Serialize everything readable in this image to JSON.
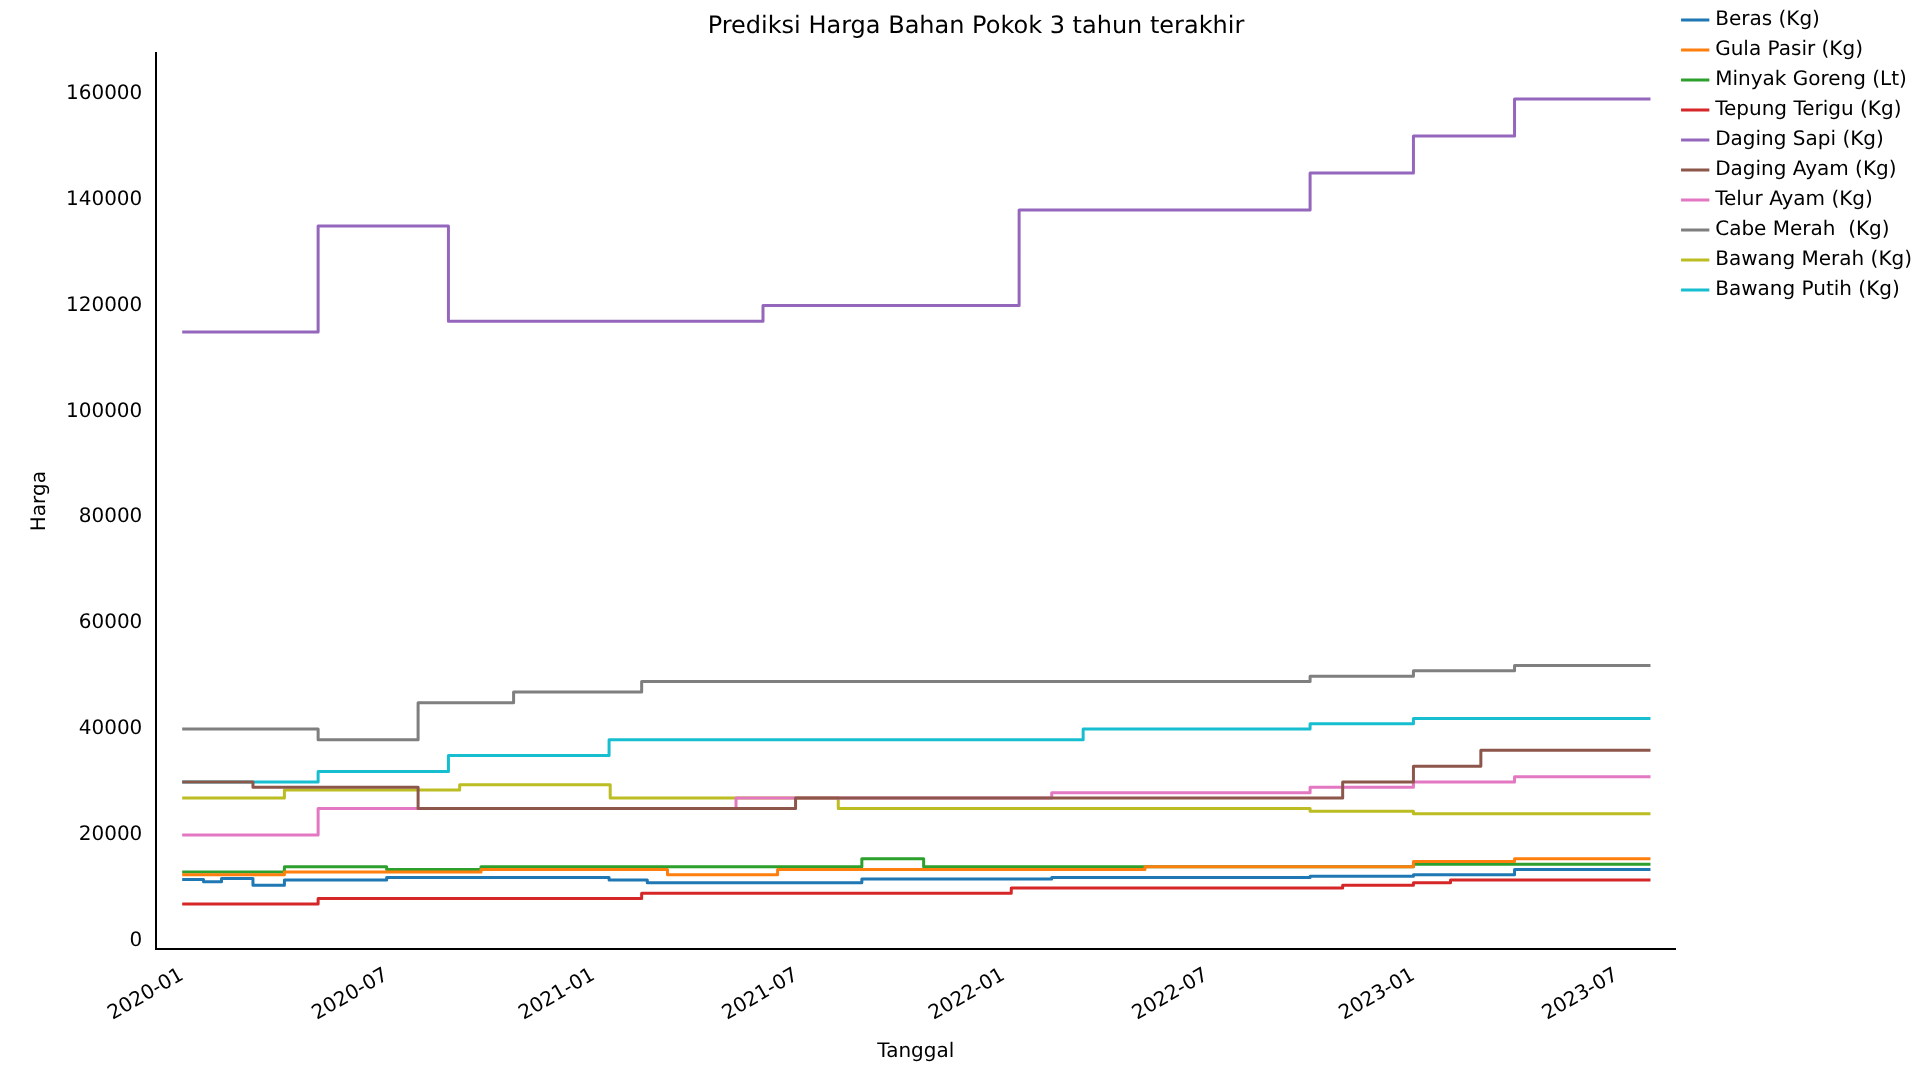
{
  "chart_data": {
    "type": "step",
    "title": "Prediksi Harga Bahan Pokok 3 tahun terakhir",
    "xlabel": "Tanggal",
    "ylabel": "Harga",
    "xlim": [
      "2019-12-09",
      "2023-08-22"
    ],
    "ylim": [
      -1600,
      167700
    ],
    "xticks": [
      "2020-01",
      "2020-07",
      "2021-01",
      "2021-07",
      "2022-01",
      "2022-07",
      "2023-01",
      "2023-07"
    ],
    "yticks": [
      0,
      20000,
      40000,
      60000,
      80000,
      100000,
      120000,
      140000,
      160000
    ],
    "grid": false,
    "legend": "top right",
    "line_style": "solid",
    "marker": "none",
    "series": [
      {
        "name": "Beras (Kg)",
        "color": "#1f77b4",
        "x": [
          "2020-01-01",
          "2020-01-20",
          "2020-02-05",
          "2020-03-04",
          "2020-04-01",
          "2020-07-01",
          "2021-01-15",
          "2021-02-18",
          "2021-08-28",
          "2022-02-13",
          "2022-10-01",
          "2023-01-01",
          "2023-04-01",
          "2023-07-31"
        ],
        "values": [
          11600,
          11200,
          11800,
          10500,
          11500,
          12000,
          11500,
          11000,
          11700,
          12000,
          12200,
          12500,
          13500,
          13500
        ]
      },
      {
        "name": "Gula Pasir (Kg)",
        "color": "#ff7f0e",
        "x": [
          "2020-01-01",
          "2020-04-01",
          "2020-09-23",
          "2021-03-08",
          "2021-06-14",
          "2022-05-07",
          "2023-01-01",
          "2023-04-01",
          "2023-07-31"
        ],
        "values": [
          12500,
          13000,
          13500,
          12500,
          13500,
          14000,
          15000,
          15500,
          15500
        ]
      },
      {
        "name": "Minyak Goreng (Lt)",
        "color": "#2ca02c",
        "x": [
          "2020-01-01",
          "2020-04-01",
          "2020-07-01",
          "2020-09-23",
          "2021-08-28",
          "2021-10-22",
          "2023-01-01",
          "2023-07-31"
        ],
        "values": [
          13000,
          14000,
          13500,
          14000,
          15500,
          14000,
          14500,
          14500
        ]
      },
      {
        "name": "Tepung Terigu (Kg)",
        "color": "#d62728",
        "x": [
          "2020-01-01",
          "2020-05-01",
          "2021-02-13",
          "2022-01-08",
          "2022-10-30",
          "2023-01-01",
          "2023-02-03",
          "2023-07-31"
        ],
        "values": [
          7000,
          8000,
          9000,
          10000,
          10500,
          11000,
          11500,
          11500
        ]
      },
      {
        "name": "Daging Sapi (Kg)",
        "color": "#9467bd",
        "x": [
          "2020-01-01",
          "2020-05-01",
          "2020-08-25",
          "2021-06-01",
          "2022-01-15",
          "2022-10-01",
          "2023-01-01",
          "2023-04-01",
          "2023-07-31"
        ],
        "values": [
          115000,
          135000,
          117000,
          120000,
          138000,
          145000,
          152000,
          159000,
          159000
        ]
      },
      {
        "name": "Daging Ayam (Kg)",
        "color": "#8c564b",
        "x": [
          "2020-01-01",
          "2020-03-04",
          "2020-07-29",
          "2021-06-30",
          "2022-10-30",
          "2023-01-01",
          "2023-03-02",
          "2023-07-31"
        ],
        "values": [
          30000,
          29000,
          25000,
          27000,
          30000,
          33000,
          36000,
          36000
        ]
      },
      {
        "name": "Telur Ayam (Kg)",
        "color": "#e377c2",
        "x": [
          "2020-01-01",
          "2020-05-01",
          "2021-05-08",
          "2022-02-13",
          "2022-10-01",
          "2023-01-01",
          "2023-04-01",
          "2023-07-31"
        ],
        "values": [
          20000,
          25000,
          27000,
          28000,
          29000,
          30000,
          31000,
          31000
        ]
      },
      {
        "name": "Cabe Merah  (Kg)",
        "color": "#7f7f7f",
        "x": [
          "2020-01-01",
          "2020-05-01",
          "2020-07-29",
          "2020-10-22",
          "2021-02-13",
          "2022-10-01",
          "2023-01-01",
          "2023-04-01",
          "2023-07-31"
        ],
        "values": [
          40000,
          38000,
          45000,
          47000,
          49000,
          50000,
          51000,
          52000,
          52000
        ]
      },
      {
        "name": "Bawang Merah (Kg)",
        "color": "#bcbd22",
        "x": [
          "2020-01-01",
          "2020-04-01",
          "2020-09-04",
          "2021-01-16",
          "2021-08-07",
          "2022-10-01",
          "2023-01-01",
          "2023-07-31"
        ],
        "values": [
          27000,
          28500,
          29500,
          27000,
          25000,
          24500,
          24000,
          24000
        ]
      },
      {
        "name": "Bawang Putih (Kg)",
        "color": "#17becf",
        "x": [
          "2020-01-01",
          "2020-05-01",
          "2020-08-25",
          "2021-01-15",
          "2022-03-13",
          "2022-10-01",
          "2023-01-01",
          "2023-07-31"
        ],
        "values": [
          30000,
          32000,
          35000,
          38000,
          40000,
          41000,
          42000,
          42000
        ]
      }
    ]
  }
}
